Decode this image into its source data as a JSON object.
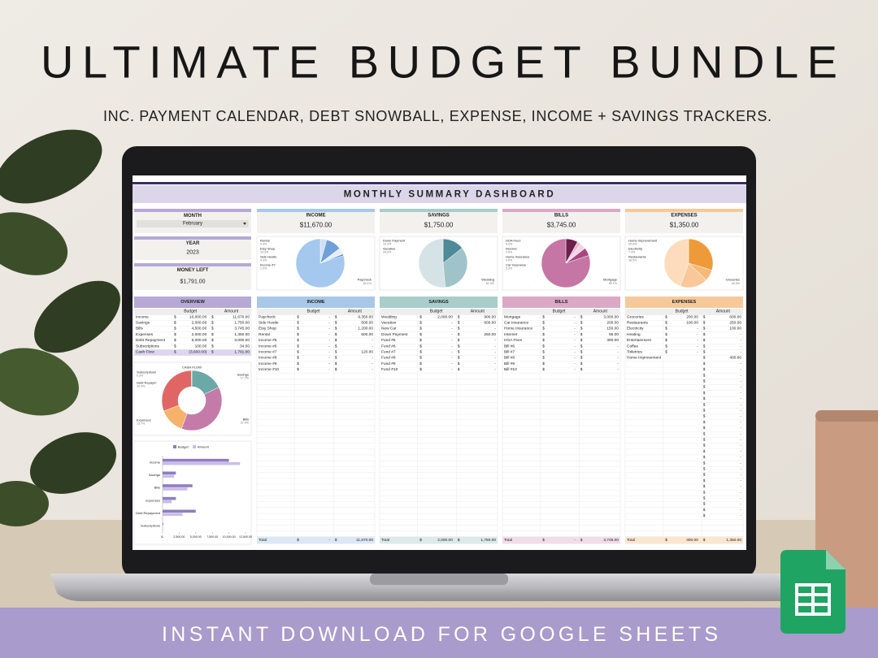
{
  "header": {
    "title": "ULTIMATE BUDGET BUNDLE",
    "subtitle": "INC. PAYMENT CALENDAR, DEBT SNOWBALL, EXPENSE, INCOME + SAVINGS TRACKERS."
  },
  "footer": {
    "banner": "INSTANT DOWNLOAD FOR GOOGLE SHEETS"
  },
  "dashboard": {
    "title": "MONTHLY SUMMARY DASHBOARD",
    "currency": "$",
    "side_color": "#b7a9d6",
    "month": {
      "label": "MONTH",
      "value": "February"
    },
    "year": {
      "label": "YEAR",
      "value": "2023"
    },
    "money_left": {
      "label": "MONEY LEFT",
      "value": "$1,791.00"
    },
    "cards": [
      {
        "label": "INCOME",
        "value": "$11,670.00",
        "color": "#a9c8e8"
      },
      {
        "label": "SAVINGS",
        "value": "$1,750.00",
        "color": "#a9cdcb"
      },
      {
        "label": "BILLS",
        "value": "$3,745.00",
        "color": "#dba8c6"
      },
      {
        "label": "EXPENSES",
        "value": "$1,350.00",
        "color": "#f6c99b"
      }
    ],
    "overview": {
      "title": "OVERVIEW",
      "color": "#b7a9d6",
      "tint": "#ddd6ef",
      "columns": [
        "Budget",
        "Amount"
      ],
      "rows": [
        [
          "Income",
          "10,000.00",
          "11,670.00"
        ],
        [
          "Savings",
          "2,000.00",
          "1,750.00"
        ],
        [
          "Bills",
          "4,500.00",
          "3,745.00"
        ],
        [
          "Expenses",
          "2,000.00",
          "1,350.00"
        ],
        [
          "Debt Repayment",
          "5,000.00",
          "3,000.00"
        ],
        [
          "Subscriptions",
          "100.00",
          "34.00"
        ],
        [
          "Cash Flow",
          "(3,600.00)",
          "1,791.00"
        ]
      ]
    },
    "tables": [
      {
        "title": "INCOME",
        "color": "#a9c8e8",
        "tint": "#dce8f5",
        "columns": [
          "Budget",
          "Amount"
        ],
        "rows": [
          [
            "Paycheck",
            "-",
            "9,350.00"
          ],
          [
            "Side Hustle",
            "-",
            "500.00"
          ],
          [
            "Etsy Shop",
            "-",
            "1,200.00"
          ],
          [
            "Rental",
            "-",
            "500.00"
          ],
          [
            "Income #5",
            "-",
            "-"
          ],
          [
            "Income #6",
            "-",
            "-"
          ],
          [
            "Income #7",
            "-",
            "120.00"
          ],
          [
            "Income #8",
            "-",
            "-"
          ],
          [
            "Income #9",
            "-",
            "-"
          ],
          [
            "Income #10",
            "-",
            "-"
          ]
        ],
        "total": [
          "Total",
          "-",
          "11,670.00"
        ]
      },
      {
        "title": "SAVINGS",
        "color": "#a9cdcb",
        "tint": "#dceae9",
        "columns": [
          "Budget",
          "Amount"
        ],
        "rows": [
          [
            "Wedding",
            "2,000.00",
            "900.00"
          ],
          [
            "Vacation",
            "-",
            "600.00"
          ],
          [
            "New Car",
            "-",
            "-"
          ],
          [
            "Down Payment",
            "-",
            "250.00"
          ],
          [
            "Fund #5",
            "-",
            "-"
          ],
          [
            "Fund #6",
            "-",
            "-"
          ],
          [
            "Fund #7",
            "-",
            "-"
          ],
          [
            "Fund #8",
            "-",
            "-"
          ],
          [
            "Fund #9",
            "-",
            "-"
          ],
          [
            "Fund #10",
            "-",
            "-"
          ]
        ],
        "total": [
          "Total",
          "2,000.00",
          "1,750.00"
        ]
      },
      {
        "title": "BILLS",
        "color": "#dba8c6",
        "tint": "#f1dde9",
        "columns": [
          "Budget",
          "Amount"
        ],
        "rows": [
          [
            "Mortgage",
            "-",
            "3,000.00"
          ],
          [
            "Car Insurance",
            "-",
            "200.00"
          ],
          [
            "Home Insurance",
            "-",
            "150.00"
          ],
          [
            "Internet",
            "-",
            "95.00"
          ],
          [
            "HOA Fees",
            "-",
            "300.00"
          ],
          [
            "Bill #6",
            "-",
            "-"
          ],
          [
            "Bill #7",
            "-",
            "-"
          ],
          [
            "Bill #8",
            "-",
            "-"
          ],
          [
            "Bill #9",
            "-",
            "-"
          ],
          [
            "Bill #10",
            "-",
            "-"
          ]
        ],
        "total": [
          "Total",
          "-",
          "3,745.00"
        ]
      },
      {
        "title": "EXPENSES",
        "color": "#f6c99b",
        "tint": "#fbe6cf",
        "columns": [
          "Budget",
          "Amount"
        ],
        "rows": [
          [
            "Groceries",
            "200.00",
            "600.00"
          ],
          [
            "Restaurants",
            "100.00",
            "250.00"
          ],
          [
            "Electricity",
            "-",
            "100.00"
          ],
          [
            "Heating",
            "-",
            "-"
          ],
          [
            "Entertainment",
            "-",
            "-"
          ],
          [
            "Coffee",
            "-",
            "-"
          ],
          [
            "Toiletries",
            "-",
            "-"
          ],
          [
            "Home Improvement",
            null,
            "400.00"
          ],
          [
            null,
            null,
            "-"
          ],
          [
            null,
            null,
            "-"
          ],
          [
            null,
            null,
            "-"
          ],
          [
            null,
            null,
            "-"
          ],
          [
            null,
            null,
            "-"
          ],
          [
            null,
            null,
            "-"
          ],
          [
            null,
            null,
            "-"
          ],
          [
            null,
            null,
            "-"
          ],
          [
            null,
            null,
            "-"
          ],
          [
            null,
            null,
            "-"
          ],
          [
            null,
            null,
            "-"
          ],
          [
            null,
            null,
            "-"
          ],
          [
            null,
            null,
            "-"
          ],
          [
            null,
            null,
            "-"
          ],
          [
            null,
            null,
            "-"
          ],
          [
            null,
            null,
            "-"
          ],
          [
            null,
            null,
            "-"
          ],
          [
            null,
            null,
            "-"
          ],
          [
            null,
            null,
            "-"
          ],
          [
            null,
            null,
            "-"
          ],
          [
            null,
            null,
            "-"
          ],
          [
            null,
            null,
            "-"
          ],
          [
            null,
            null,
            "-"
          ],
          [
            null,
            null,
            "-"
          ],
          [
            null,
            null,
            "-"
          ],
          [
            null,
            null,
            "-"
          ],
          [
            null,
            null,
            "-"
          ]
        ],
        "total": [
          "Total",
          "300.00",
          "1,350.00"
        ]
      }
    ]
  },
  "chart_data": [
    {
      "type": "pie",
      "categories": [
        "Rental",
        "Etsy Shop",
        "Side Hustle",
        "Income #7",
        "Paycheck"
      ],
      "values": [
        4.3,
        10.3,
        4.3,
        1.0,
        80.1
      ],
      "value_labels": [
        "4.3%",
        "10.3%",
        "4.3%",
        "1.0%",
        "80.1%"
      ],
      "colors": [
        "#cfe0f5",
        "#6fa0d8",
        "#e6eff9",
        "#3a78c2",
        "#a4c8ee"
      ]
    },
    {
      "type": "pie",
      "categories": [
        "Down Payment",
        "Vacation",
        "Wedding"
      ],
      "values": [
        14.3,
        34.3,
        51.4
      ],
      "value_labels": [
        "14.3%",
        "34.3%",
        "51.4%"
      ],
      "colors": [
        "#4f8b97",
        "#9fc3c9",
        "#d5e2e6"
      ]
    },
    {
      "type": "pie",
      "categories": [
        "HOA Fees",
        "Internet",
        "Home Insurance",
        "Car Insurance",
        "Mortgage"
      ],
      "values": [
        8.0,
        2.5,
        4.0,
        5.3,
        80.1
      ],
      "value_labels": [
        "8.0%",
        "2.5%",
        "4.0%",
        "5.3%",
        "80.1%"
      ],
      "colors": [
        "#6e1f4b",
        "#e8b9d3",
        "#f2d5e5",
        "#a9457f",
        "#c576a4"
      ]
    },
    {
      "type": "pie",
      "categories": [
        "Home Improvement",
        "Electricity",
        "Restaurants",
        "Groceries"
      ],
      "values": [
        29.6,
        7.4,
        18.5,
        44.4
      ],
      "value_labels": [
        "29.6%",
        "7.4%",
        "18.5%",
        "44.4%"
      ],
      "colors": [
        "#ef9a3a",
        "#f5b978",
        "#f8c89a",
        "#fcdcbc"
      ]
    },
    {
      "type": "donut",
      "title": "CASH FLOW",
      "categories": [
        "Savings",
        "Bills",
        "Expenses",
        "Debt Repaym",
        "Subscriptions"
      ],
      "values": [
        17.7,
        37.9,
        13.7,
        30.4,
        0.3
      ],
      "value_labels": [
        "17.7%",
        "37.9%",
        "13.7%",
        "30.4%",
        "0.3%"
      ],
      "colors": [
        "#6aa9a6",
        "#c47ba8",
        "#f6b26b",
        "#e06666",
        "#999999"
      ]
    },
    {
      "type": "hbar",
      "categories": [
        "Income",
        "Savings",
        "Bills",
        "Expenses",
        "Debt Repayment",
        "Subscriptions"
      ],
      "series": [
        {
          "name": "Budget",
          "color": "#8e7cc3",
          "values": [
            10000,
            2000,
            4500,
            2000,
            5000,
            100
          ]
        },
        {
          "name": "Amount",
          "color": "#c9bde8",
          "values": [
            11670,
            1750,
            3745,
            1350,
            3000,
            34
          ]
        }
      ],
      "xlim": [
        0,
        12500
      ],
      "xticks": [
        {
          "value": 0,
          "label": "$-"
        },
        {
          "value": 2500,
          "label": "2,500.00"
        },
        {
          "value": 5000,
          "label": "5,000.00"
        },
        {
          "value": 7500,
          "label": "7,500.00"
        },
        {
          "value": 10000,
          "label": "10,000.00"
        },
        {
          "value": 12500,
          "label": "12,500.00"
        }
      ],
      "grid": false
    }
  ]
}
